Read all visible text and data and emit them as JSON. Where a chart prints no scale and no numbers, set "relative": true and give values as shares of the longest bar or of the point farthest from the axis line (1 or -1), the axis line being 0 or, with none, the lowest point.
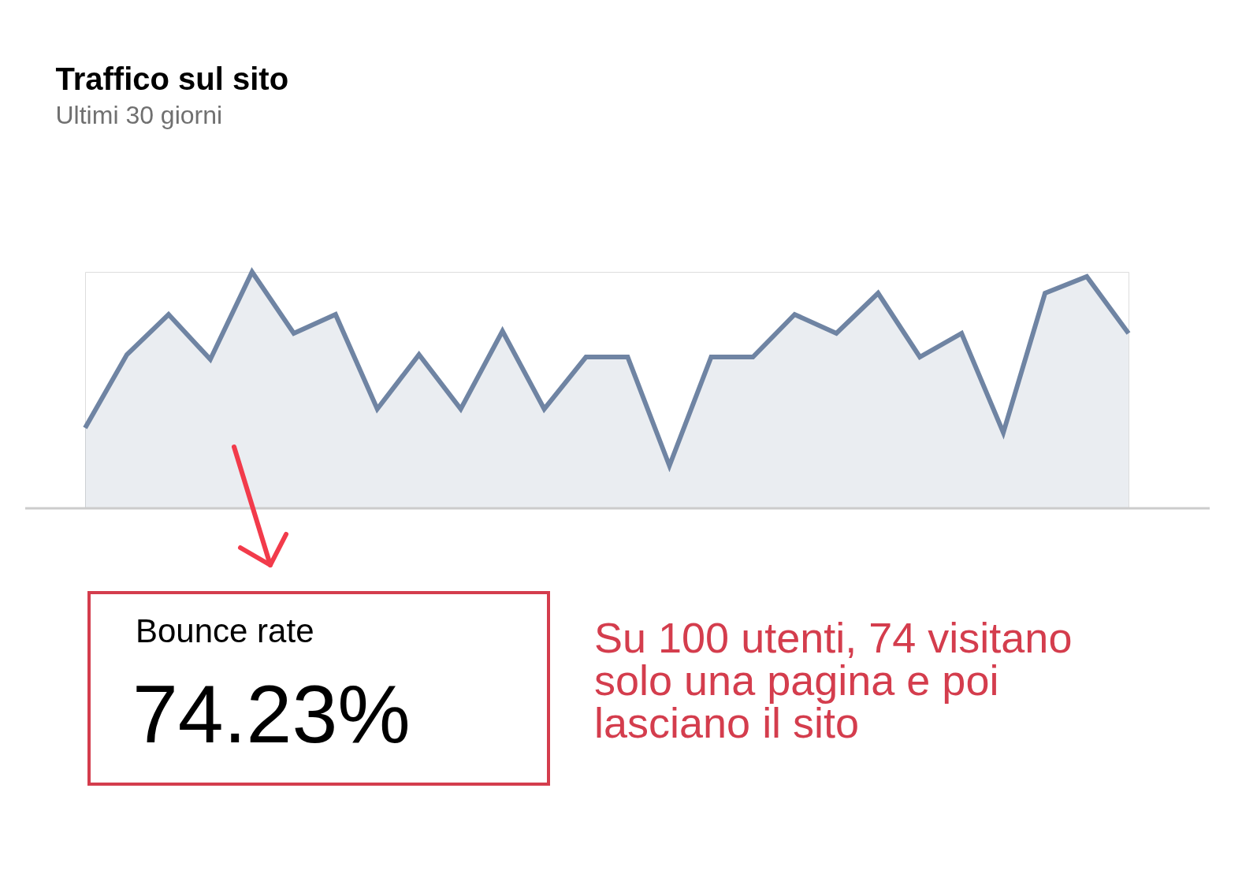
{
  "chart_data": {
    "type": "area",
    "title": "Traffico sul sito",
    "subtitle": "Ultimi 30 giorni",
    "relative": true,
    "categories": [
      null,
      null,
      null,
      null,
      null,
      null,
      null,
      null,
      null,
      null,
      null,
      null,
      null,
      null,
      null,
      null,
      null,
      null,
      null,
      null,
      null,
      null,
      null,
      null,
      null,
      null
    ],
    "series": [
      {
        "color": "#6f84a3",
        "values": [
          0.34,
          0.65,
          0.82,
          0.63,
          1.0,
          0.74,
          0.82,
          0.42,
          0.65,
          0.42,
          0.75,
          0.42,
          0.64,
          0.64,
          0.18,
          0.64,
          0.64,
          0.82,
          0.74,
          0.91,
          0.64,
          0.74,
          0.32,
          0.91,
          0.98,
          0.74
        ]
      }
    ],
    "annotations": [
      "Bounce rate",
      "74.23%",
      "Su 100 utenti, 74 visitano solo una pagina e poi lasciano il sito"
    ]
  }
}
